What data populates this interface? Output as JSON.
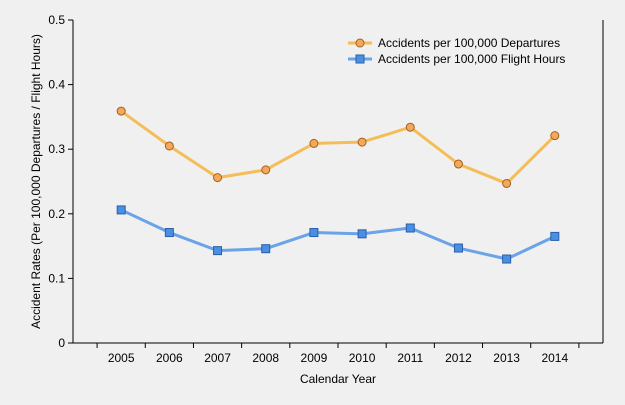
{
  "chart_data": {
    "type": "line",
    "title": "",
    "xlabel": "Calendar Year",
    "ylabel": "Accident Rates (Per 100,000 Departures / Flight Hours)",
    "categories": [
      "2005",
      "2006",
      "2007",
      "2008",
      "2009",
      "2010",
      "2011",
      "2012",
      "2013",
      "2014"
    ],
    "ylim": [
      0,
      0.5
    ],
    "yticks": [
      "0",
      "0.1",
      "0.2",
      "0.3",
      "0.4",
      "0.5"
    ],
    "grid": false,
    "legend_position": "top-right",
    "series": [
      {
        "name": "Accidents per 100,000 Departures",
        "color": "#f5bd58",
        "marker": "circle",
        "marker_fill": "#f5a85a",
        "values": [
          0.359,
          0.305,
          0.256,
          0.268,
          0.309,
          0.311,
          0.334,
          0.277,
          0.247,
          0.321
        ]
      },
      {
        "name": "Accidents per 100,000 Flight Hours",
        "color": "#6aa3e8",
        "marker": "square",
        "marker_fill": "#4a90e2",
        "values": [
          0.206,
          0.171,
          0.143,
          0.146,
          0.171,
          0.169,
          0.178,
          0.147,
          0.13,
          0.165
        ]
      }
    ]
  }
}
